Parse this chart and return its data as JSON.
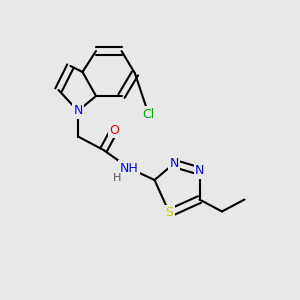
{
  "background_color": "#e8e8e8",
  "bond_color": "#000000",
  "bond_lw": 1.5,
  "atom_colors": {
    "N": "#0000ff",
    "O": "#ff0000",
    "S": "#cccc00",
    "Cl": "#00aa00",
    "H": "#555555"
  },
  "font_size": 9,
  "figsize": [
    3.0,
    3.0
  ],
  "dpi": 100
}
